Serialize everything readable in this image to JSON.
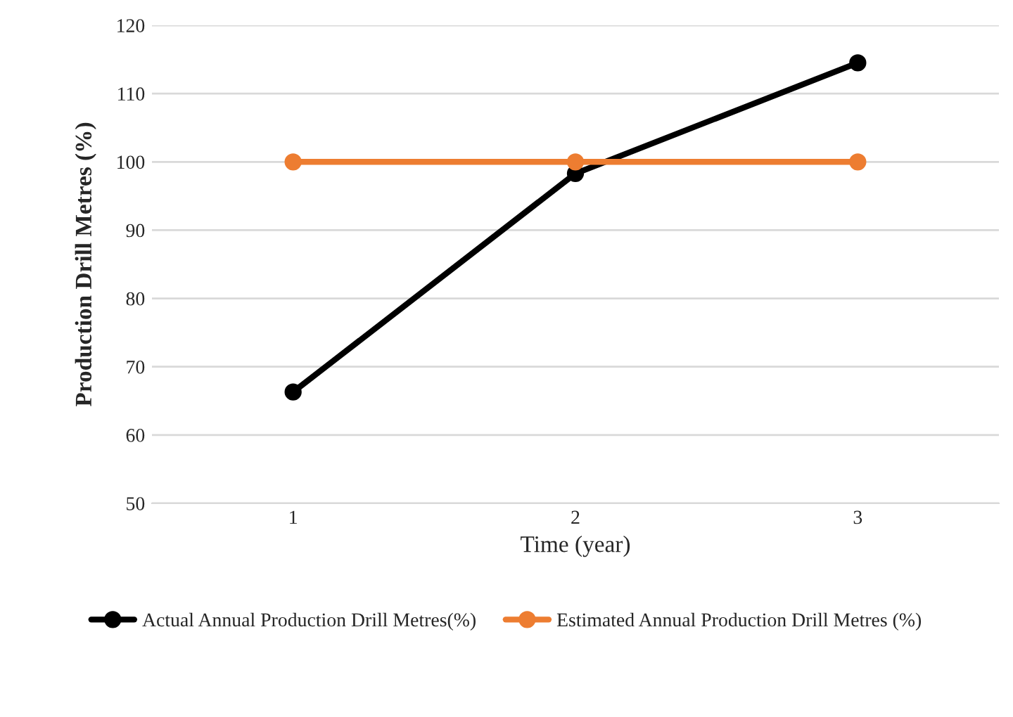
{
  "chart_data": {
    "type": "line",
    "xlabel": "Time (year)",
    "ylabel": "Production Drill Metres (%)",
    "categories": [
      "1",
      "2",
      "3"
    ],
    "series": [
      {
        "name": "Actual Annual Production Drill Metres(%)",
        "color": "#000000",
        "values": [
          66.3,
          98.3,
          114.5
        ]
      },
      {
        "name": "Estimated Annual Production Drill Metres (%)",
        "color": "#ed7d31",
        "values": [
          100,
          100,
          100
        ]
      }
    ],
    "ylim": [
      50,
      120
    ],
    "yticks": [
      50,
      60,
      70,
      80,
      90,
      100,
      110,
      120
    ],
    "grid": "y",
    "legend": "bottom",
    "marker": "circle",
    "line_style": "solid"
  }
}
